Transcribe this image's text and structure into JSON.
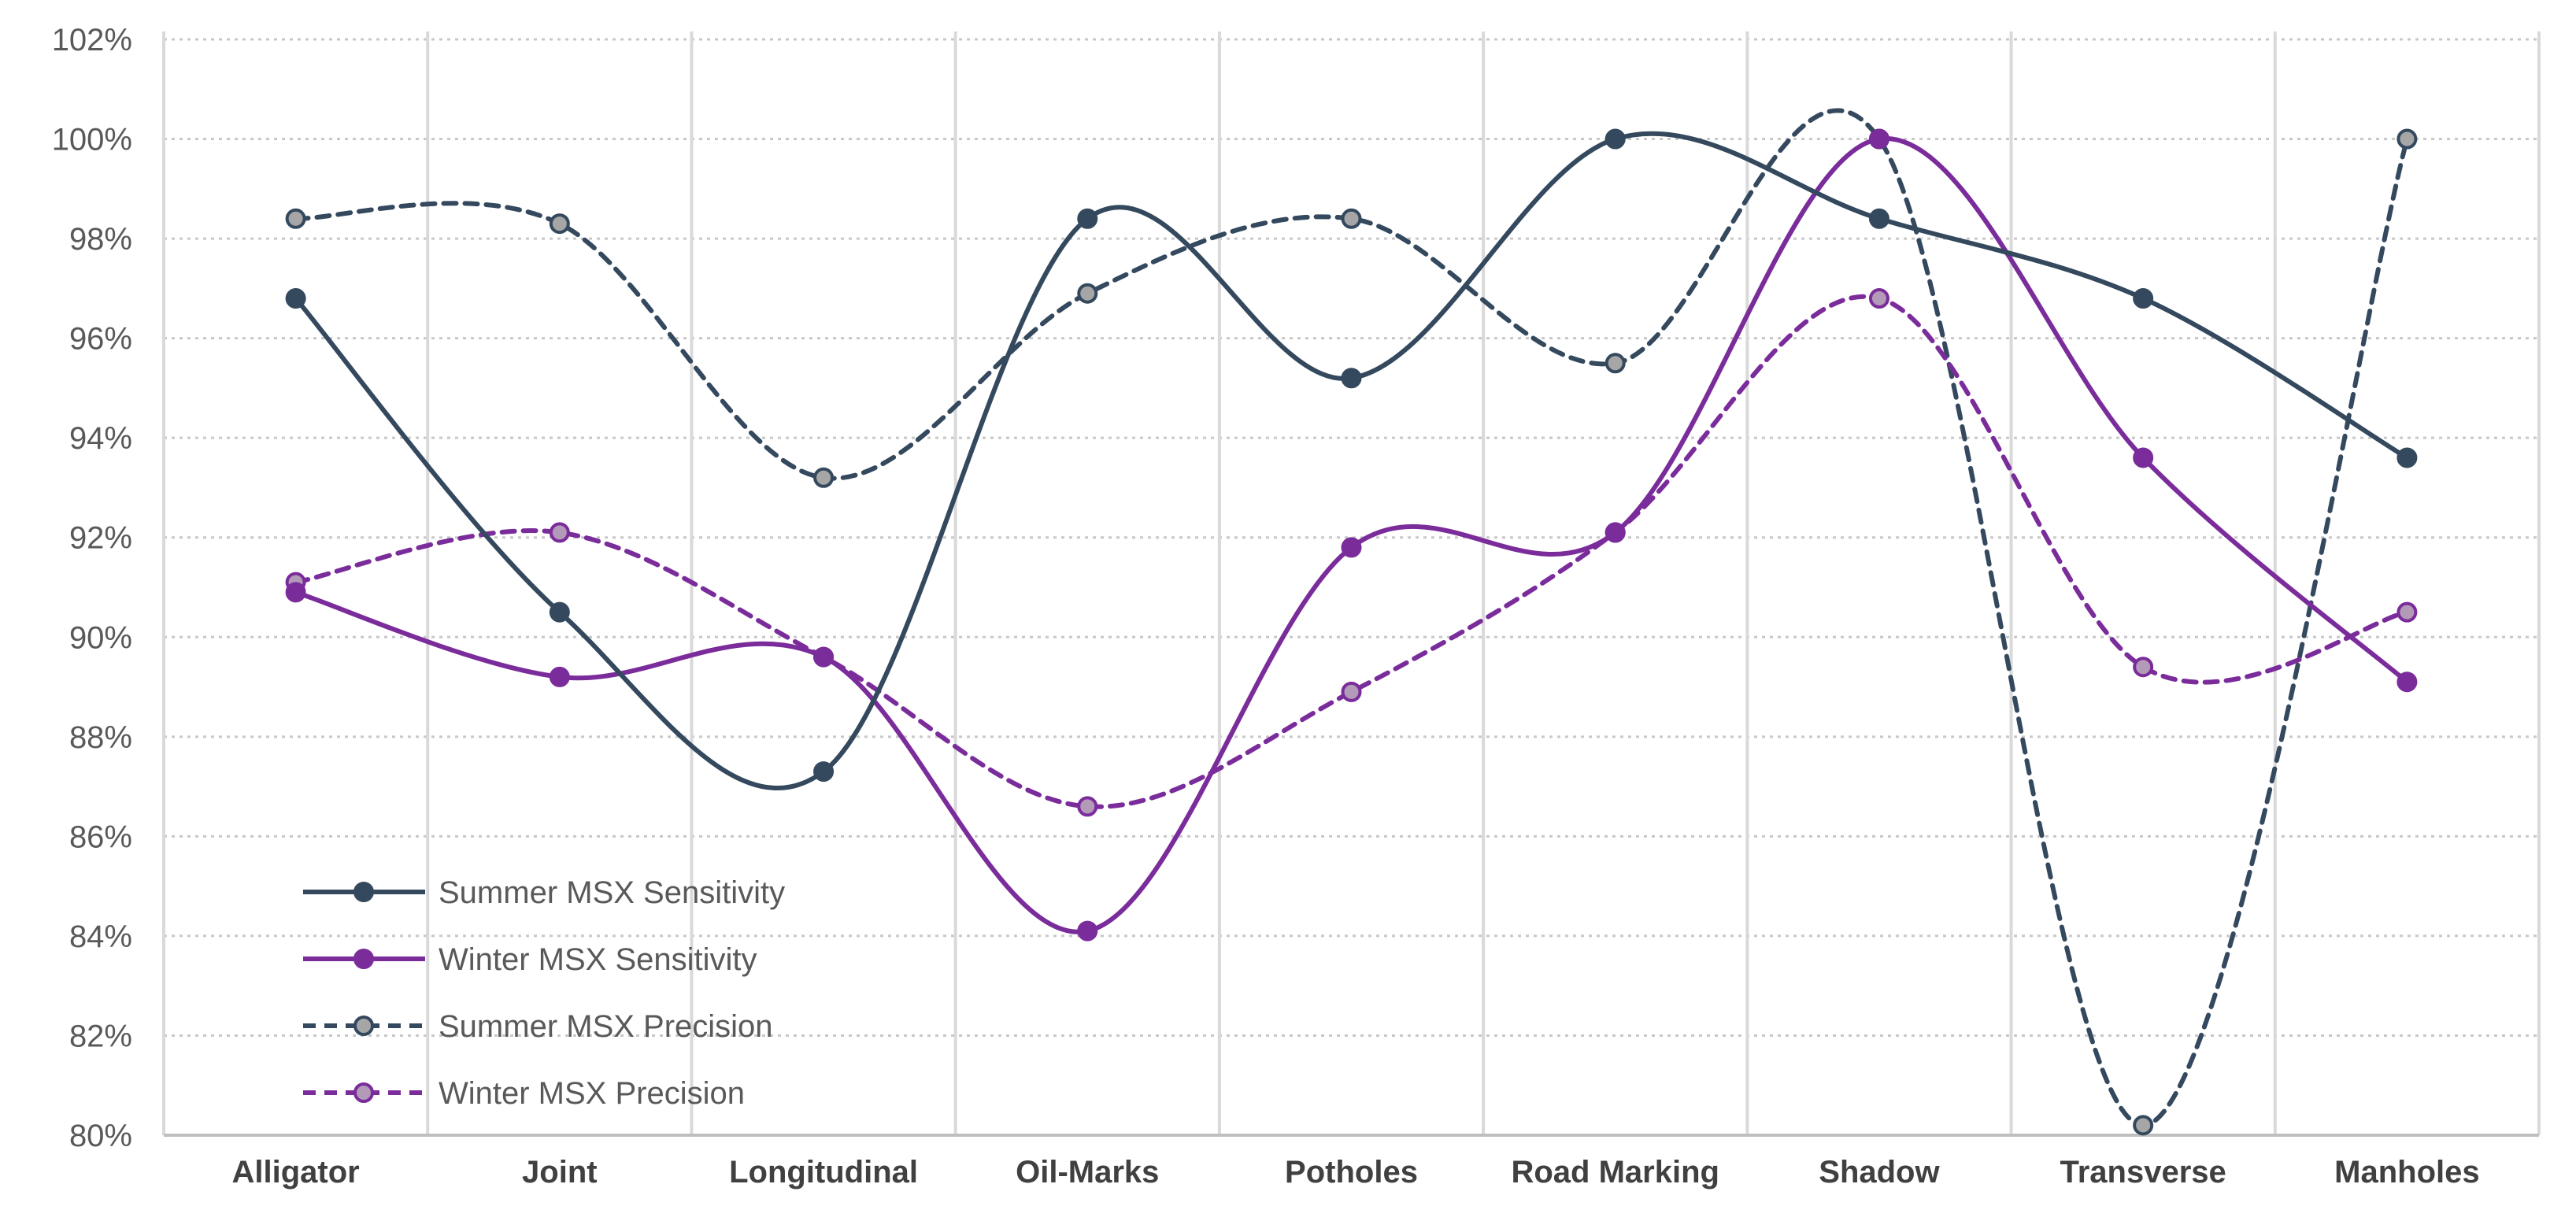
{
  "chart_data": {
    "type": "line",
    "categories": [
      "Alligator",
      "Joint",
      "Longitudinal",
      "Oil-Marks",
      "Potholes",
      "Road Marking",
      "Shadow",
      "Transverse",
      "Manholes"
    ],
    "y_tick_labels": [
      "80%",
      "82%",
      "84%",
      "86%",
      "88%",
      "90%",
      "92%",
      "94%",
      "96%",
      "98%",
      "100%",
      "102%"
    ],
    "ylim": [
      80,
      102
    ],
    "y_tick_step": 2,
    "grid": true,
    "legend_position": "bottom-left",
    "series": [
      {
        "name": "Summer MSX Sensitivity",
        "values": [
          96.8,
          90.5,
          87.3,
          98.4,
          95.2,
          100,
          98.4,
          96.8,
          93.6
        ],
        "color": "#34495e",
        "dashed": false,
        "marker_fill": "#34495e"
      },
      {
        "name": "Winter MSX Sensitivity",
        "values": [
          90.9,
          89.2,
          89.6,
          84.1,
          91.8,
          92.1,
          100,
          93.6,
          89.1
        ],
        "color": "#7b2c9b",
        "dashed": false,
        "marker_fill": "#7b2c9b"
      },
      {
        "name": "Summer MSX Precision",
        "values": [
          98.4,
          98.3,
          93.2,
          96.9,
          98.4,
          95.5,
          100,
          80.2,
          100
        ],
        "color": "#34495e",
        "dashed": true,
        "marker_fill": "#a6a6a6"
      },
      {
        "name": "Winter MSX Precision",
        "values": [
          91.1,
          92.1,
          89.6,
          86.6,
          88.9,
          92.1,
          96.8,
          89.4,
          90.5
        ],
        "color": "#7b2c9b",
        "dashed": true,
        "marker_fill": "#b39ab8"
      }
    ]
  }
}
